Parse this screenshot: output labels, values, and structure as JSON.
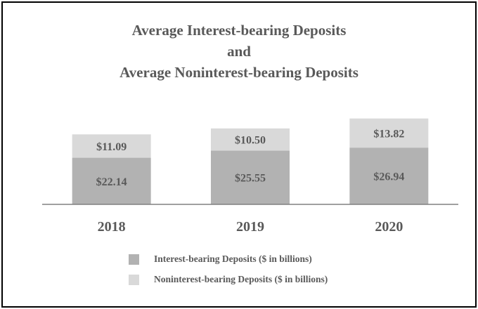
{
  "chart_data": {
    "type": "bar",
    "stacked": true,
    "title_lines": [
      "Average Interest-bearing Deposits",
      "and",
      "Average Noninterest-bearing Deposits"
    ],
    "categories": [
      "2018",
      "2019",
      "2020"
    ],
    "series": [
      {
        "name": "Interest-bearing Deposits ($ in billions)",
        "values": [
          22.14,
          25.55,
          26.94
        ],
        "labels": [
          "$22.14",
          "$25.55",
          "$26.94"
        ],
        "color": "#b2b2b2"
      },
      {
        "name": "Noninterest-bearing Deposits ($ in billions)",
        "values": [
          11.09,
          10.5,
          13.82
        ],
        "labels": [
          "$11.09",
          "$10.50",
          "$13.82"
        ],
        "color": "#d9d9d9"
      }
    ],
    "ylim": [
      0,
      50
    ],
    "grid": false,
    "legend_position": "bottom"
  },
  "colors": {
    "text": "#595959",
    "axis": "#808080",
    "border": "#000000"
  }
}
